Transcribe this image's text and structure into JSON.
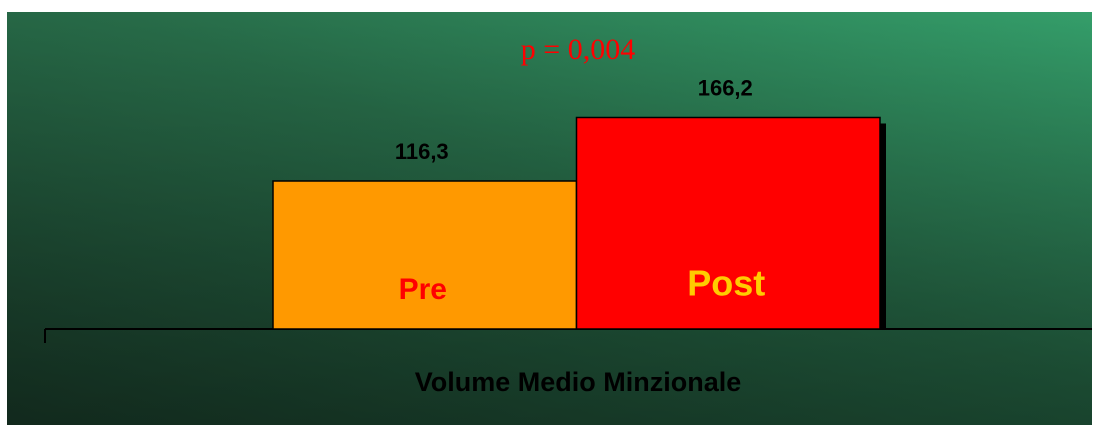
{
  "chart_data": {
    "type": "bar",
    "annotation": "p = 0,004",
    "xlabel": "Volume Medio Minzionale",
    "categories": [
      "Pre",
      "Post"
    ],
    "values": [
      116.3,
      166.2
    ],
    "value_labels": [
      "116,3",
      "166,2"
    ],
    "colors": [
      "#ff9900",
      "#ff0000"
    ]
  }
}
